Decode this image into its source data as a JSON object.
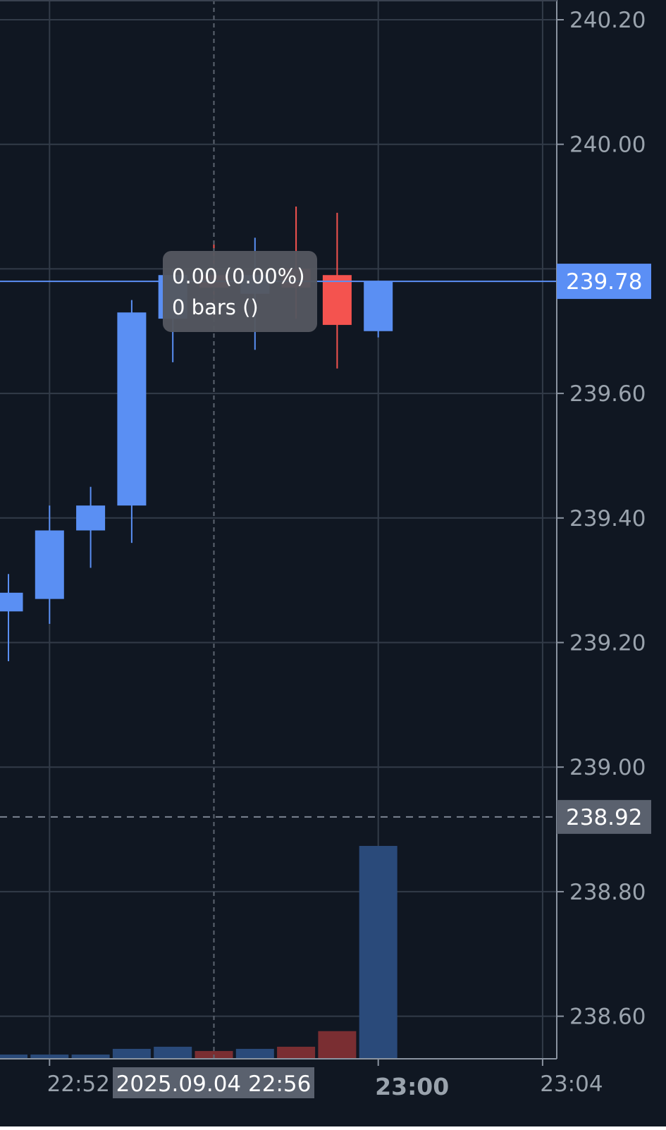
{
  "colors": {
    "background": "#101722",
    "grid": "#323b48",
    "axis_line": "#8a93a0",
    "axis_text": "#9aa3ad",
    "up": "#5a8ff3",
    "down": "#f4534f",
    "volume_up": "#2a4a7a",
    "volume_down": "#7a2e32",
    "last_price_line": "#5b8ff5",
    "last_price_tag": "#5b8ff5",
    "marker_tag": "#5a616e",
    "tooltip_bg": "#545760",
    "crosshair": "#5d6470"
  },
  "chart_data": {
    "type": "candlestick",
    "y_axis": {
      "ticks": [
        "240.20",
        "240.00",
        "239.60",
        "239.40",
        "239.20",
        "239.00",
        "238.80",
        "238.60"
      ],
      "ylim": [
        238.54,
        240.23
      ]
    },
    "x_axis": {
      "ticks": [
        "22:52",
        "23:00",
        "23:04"
      ],
      "crosshair_label": "2025.09.04 22:56"
    },
    "candles": [
      {
        "time": "22:51",
        "open": 239.25,
        "high": 239.31,
        "low": 239.17,
        "close": 239.28
      },
      {
        "time": "22:52",
        "open": 239.27,
        "high": 239.42,
        "low": 239.23,
        "close": 239.38
      },
      {
        "time": "22:53",
        "open": 239.38,
        "high": 239.45,
        "low": 239.32,
        "close": 239.42
      },
      {
        "time": "22:54",
        "open": 239.42,
        "high": 239.75,
        "low": 239.36,
        "close": 239.73
      },
      {
        "time": "22:55",
        "open": 239.72,
        "high": 239.8,
        "low": 239.65,
        "close": 239.79
      },
      {
        "time": "22:56",
        "open": 239.79,
        "high": 239.84,
        "low": 239.72,
        "close": 239.77
      },
      {
        "time": "22:57",
        "open": 239.76,
        "high": 239.85,
        "low": 239.67,
        "close": 239.79
      },
      {
        "time": "22:58",
        "open": 239.8,
        "high": 239.9,
        "low": 239.72,
        "close": 239.77
      },
      {
        "time": "22:59",
        "open": 239.79,
        "high": 239.89,
        "low": 239.64,
        "close": 239.71
      },
      {
        "time": "23:00",
        "open": 239.7,
        "high": 239.78,
        "low": 239.69,
        "close": 239.78
      }
    ],
    "volume": [
      {
        "time": "22:51",
        "value": 0.6,
        "direction": "up"
      },
      {
        "time": "22:52",
        "value": 0.6,
        "direction": "up"
      },
      {
        "time": "22:53",
        "value": 0.6,
        "direction": "up"
      },
      {
        "time": "22:54",
        "value": 1.4,
        "direction": "up"
      },
      {
        "time": "22:55",
        "value": 1.7,
        "direction": "up"
      },
      {
        "time": "22:56",
        "value": 1.1,
        "direction": "down"
      },
      {
        "time": "22:57",
        "value": 1.4,
        "direction": "up"
      },
      {
        "time": "22:58",
        "value": 1.7,
        "direction": "down"
      },
      {
        "time": "22:59",
        "value": 3.9,
        "direction": "down"
      },
      {
        "time": "23:00",
        "value": 30,
        "direction": "up"
      }
    ],
    "last_price": "239.78",
    "last_price_value": 239.78,
    "marker_price": "238.92",
    "marker_price_value": 238.92,
    "tooltip": {
      "line1": "0.00 (0.00%)",
      "line2": "0 bars ()"
    }
  }
}
